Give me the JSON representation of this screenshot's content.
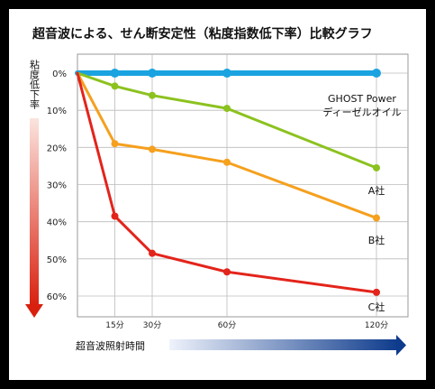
{
  "chart_data": {
    "type": "line",
    "title": "超音波による、せん断安定性（粘度指数低下率）比較グラフ",
    "ylabel": "粘度低下率",
    "xlabel": "超音波照射時間",
    "x": [
      0,
      15,
      30,
      60,
      120
    ],
    "x_tick_labels": [
      "15分",
      "30分",
      "60分",
      "120分"
    ],
    "x_tick_values": [
      15,
      30,
      60,
      120
    ],
    "y_tick_labels": [
      "0%",
      "10%",
      "20%",
      "30%",
      "40%",
      "50%",
      "60%"
    ],
    "y_tick_values": [
      0,
      10,
      20,
      30,
      40,
      50,
      60
    ],
    "xlim": [
      0,
      123
    ],
    "ylim": [
      0,
      65
    ],
    "y_inverted": true,
    "grid": true,
    "series": [
      {
        "name": "GHOST Power ディーゼルオイル",
        "label_lines": [
          "GHOST Power",
          "ディーゼルオイル"
        ],
        "values": [
          0,
          0,
          0,
          0,
          0
        ],
        "color": "#1aa3e0"
      },
      {
        "name": "A社",
        "label_lines": [
          "A社"
        ],
        "values": [
          0,
          3.5,
          6,
          9.5,
          25.5
        ],
        "color": "#8cc21f"
      },
      {
        "name": "B社",
        "label_lines": [
          "B社"
        ],
        "values": [
          0,
          19,
          20.5,
          24,
          39
        ],
        "color": "#f5a01e"
      },
      {
        "name": "C社",
        "label_lines": [
          "C社"
        ],
        "values": [
          0,
          38.5,
          48.5,
          53.5,
          59
        ],
        "color": "#e3241b"
      }
    ]
  }
}
